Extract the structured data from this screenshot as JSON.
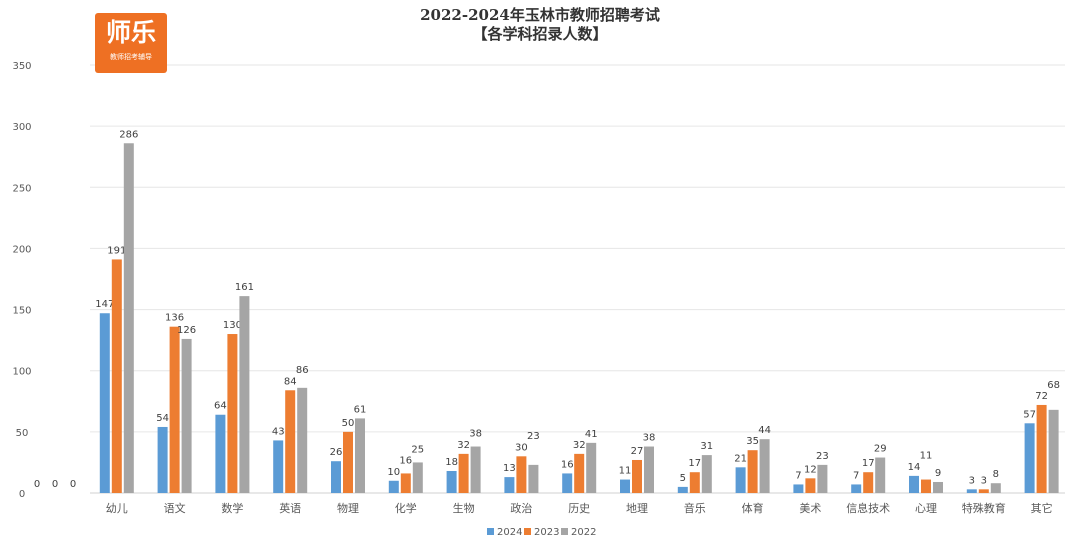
{
  "title_line1": "2022-2024年玉林市教师招聘考试",
  "title_line2": "【各学科招录人数】",
  "logo": {
    "brand": "师乐",
    "tagline": "教师招考辅导"
  },
  "watermark": "师乐",
  "chart_data": {
    "type": "bar",
    "title": "2022-2024年玉林市教师招聘考试【各学科招录人数】",
    "ylim": [
      0,
      350
    ],
    "yticks": [
      0,
      50,
      100,
      150,
      200,
      250,
      300,
      350
    ],
    "legend_position": "bottom",
    "categories": [
      "",
      "幼儿",
      "语文",
      "数学",
      "英语",
      "物理",
      "化学",
      "生物",
      "政治",
      "历史",
      "地理",
      "音乐",
      "体育",
      "美术",
      "信息技术",
      "心理",
      "特殊教育",
      "其它"
    ],
    "series": [
      {
        "name": "2024",
        "color": "#5b9bd5",
        "values": [
          0,
          147,
          54,
          64,
          43,
          26,
          10,
          18,
          13,
          16,
          11,
          5,
          21,
          7,
          7,
          14,
          3,
          57
        ]
      },
      {
        "name": "2023",
        "color": "#ed7d31",
        "values": [
          0,
          191,
          136,
          130,
          84,
          50,
          16,
          32,
          30,
          32,
          27,
          17,
          35,
          12,
          17,
          11,
          3,
          72
        ]
      },
      {
        "name": "2022",
        "color": "#a5a5a5",
        "values": [
          0,
          286,
          126,
          161,
          86,
          61,
          25,
          38,
          23,
          41,
          38,
          31,
          44,
          23,
          29,
          9,
          8,
          68
        ]
      }
    ]
  }
}
